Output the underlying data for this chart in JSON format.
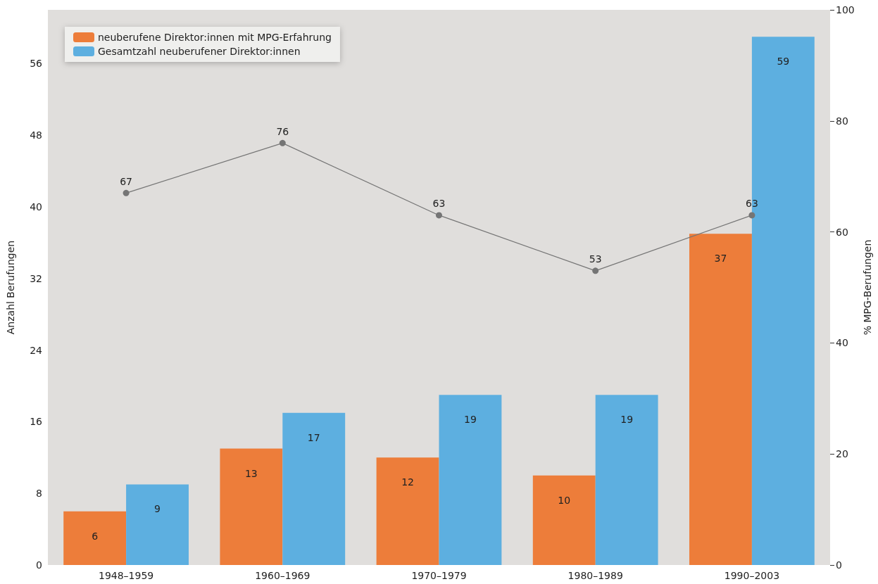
{
  "chart_data": {
    "type": "bar",
    "ylabel": "Anzahl Berufungen",
    "y2label": "% MPG-Berufungen",
    "categories": [
      "1948–1959",
      "1960–1969",
      "1970–1979",
      "1980–1989",
      "1990–2003"
    ],
    "series": [
      {
        "name": "neuberufene Direktor:innen mit MPG-Erfahrung",
        "color": "#ed7d3a",
        "values": [
          6,
          13,
          12,
          10,
          37
        ]
      },
      {
        "name": "Gesamtzahl neuberufener Direktor:innen",
        "color": "#5dafe0",
        "values": [
          9,
          17,
          19,
          19,
          59
        ]
      },
      {
        "type": "line",
        "axis": "y2",
        "color": "#757575",
        "values": [
          67,
          76,
          63,
          53,
          63
        ]
      }
    ],
    "ylim": [
      0,
      62
    ],
    "yticks": [
      0,
      8,
      16,
      24,
      32,
      40,
      48,
      56
    ],
    "y2lim": [
      0,
      100
    ],
    "y2ticks": [
      0,
      20,
      40,
      60,
      80,
      100
    ],
    "data_labels": true,
    "marker": "circle",
    "grid": false,
    "legend": "top left"
  }
}
